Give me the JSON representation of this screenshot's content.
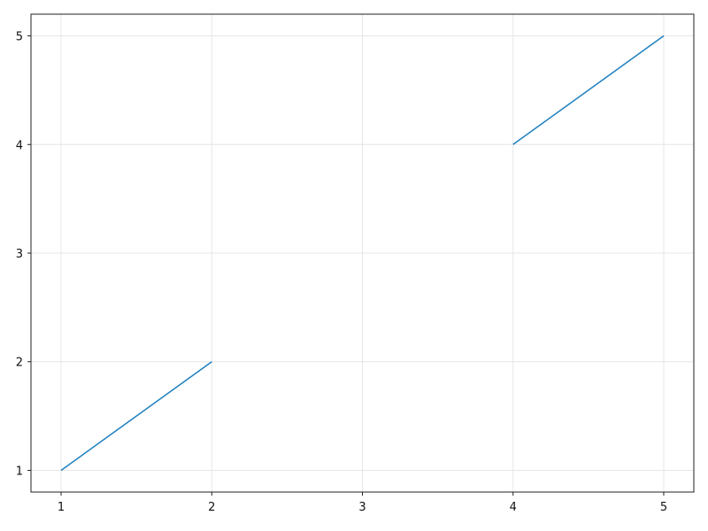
{
  "chart_data": {
    "type": "line",
    "title": "",
    "xlabel": "",
    "ylabel": "",
    "xlim": [
      0.8,
      5.2
    ],
    "ylim": [
      0.8,
      5.2
    ],
    "grid": true,
    "x_ticks": [
      "1",
      "2",
      "3",
      "4",
      "5"
    ],
    "y_ticks": [
      "1",
      "2",
      "3",
      "4",
      "5"
    ],
    "series": [
      {
        "x": [
          1,
          2,
          3,
          4,
          5
        ],
        "y": [
          1,
          2,
          null,
          4,
          5
        ],
        "color": "#1f80c0"
      }
    ]
  }
}
